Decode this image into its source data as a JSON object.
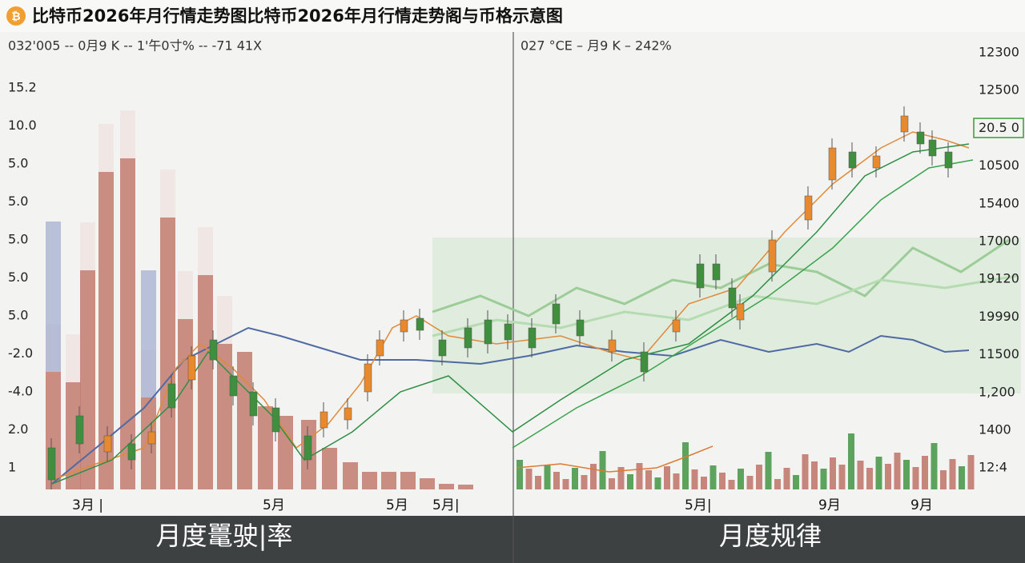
{
  "header": {
    "title": "比特币2026年月行情走势图比特币2026年月行情走势阁与币格示意图"
  },
  "panels": [
    {
      "subtitle": "032'005 -- 0月9 K -- 1'午0寸% -- -71 41X",
      "y_labels": [
        "15.2",
        "10.0",
        "5.0",
        "5.0",
        "5.0",
        "5.0",
        "5.0",
        "-2.0",
        "-4.0",
        "2.0",
        "1"
      ],
      "x_labels": [
        "3月 |",
        "5月",
        "5月",
        "5月|"
      ],
      "caption": "月度鼍驶|率"
    },
    {
      "subtitle": "027 °CE – 月9 K – 242%",
      "y_labels": [
        "12300",
        "12500",
        "20.5 0",
        "10500",
        "15400",
        "17000",
        "19120",
        "19990",
        "11500",
        "1,200",
        "1400",
        "12:4"
      ],
      "x_labels": [
        "5月|",
        "9月",
        "9月"
      ],
      "caption": "月度规律"
    }
  ]
}
